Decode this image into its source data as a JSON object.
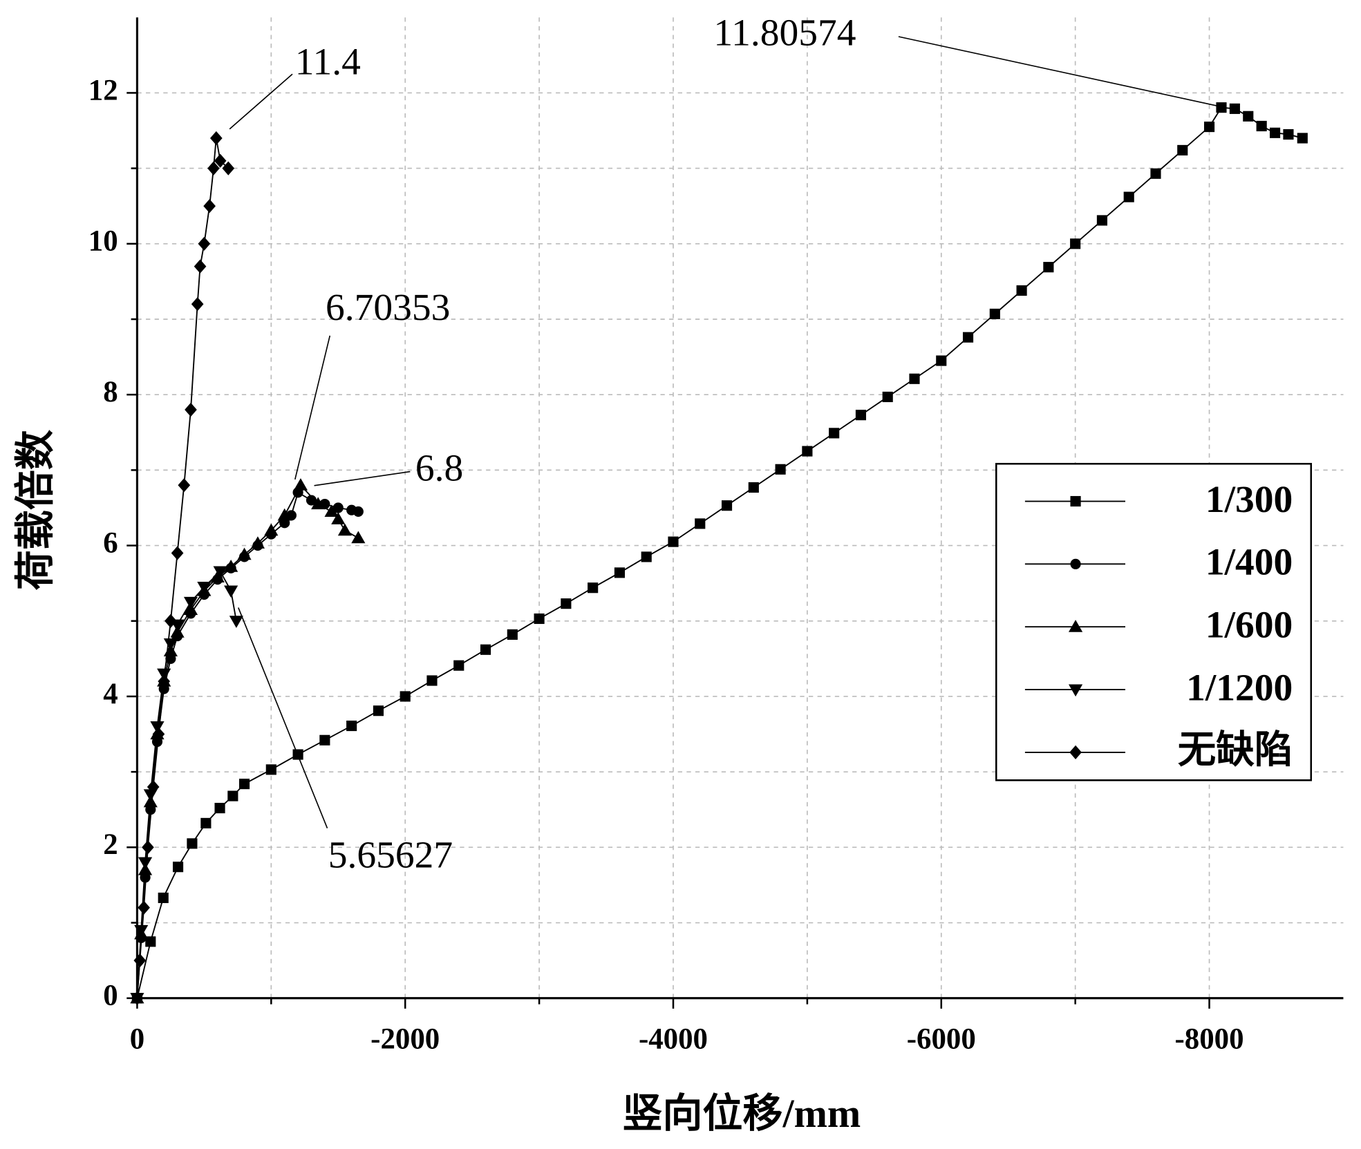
{
  "chart_data": {
    "type": "line",
    "xlabel": "竖向位移/mm",
    "ylabel": "荷载倍数",
    "xlim": [
      0,
      -9000
    ],
    "ylim": [
      0,
      13
    ],
    "xticks": [
      0,
      -2000,
      -4000,
      -6000,
      -8000
    ],
    "yticks": [
      0,
      2,
      4,
      6,
      8,
      10,
      12
    ],
    "grid": true,
    "legend": "right",
    "series": [
      {
        "name": "1/300",
        "marker": "square",
        "color": "#000000",
        "x": [
          0,
          -100,
          -195,
          -305,
          -410,
          -513,
          -617,
          -714,
          -800,
          -1000,
          -1200,
          -1400,
          -1600,
          -1800,
          -2000,
          -2200,
          -2400,
          -2600,
          -2800,
          -3000,
          -3200,
          -3400,
          -3600,
          -3800,
          -4000,
          -4200,
          -4400,
          -4600,
          -4800,
          -5000,
          -5200,
          -5400,
          -5600,
          -5800,
          -6000,
          -6200,
          -6400,
          -6600,
          -6800,
          -7000,
          -7200,
          -7400,
          -7600,
          -7800,
          -8000,
          -8090,
          -8190,
          -8290,
          -8390,
          -8490,
          -8590,
          -8695
        ],
        "values": [
          0,
          0.75,
          1.33,
          1.74,
          2.05,
          2.32,
          2.52,
          2.68,
          2.84,
          3.03,
          3.23,
          3.42,
          3.61,
          3.81,
          4.0,
          4.21,
          4.41,
          4.62,
          4.82,
          5.03,
          5.23,
          5.44,
          5.64,
          5.85,
          6.05,
          6.29,
          6.53,
          6.77,
          7.01,
          7.25,
          7.49,
          7.73,
          7.97,
          8.21,
          8.45,
          8.76,
          9.07,
          9.38,
          9.69,
          10.0,
          10.31,
          10.62,
          10.93,
          11.24,
          11.55,
          11.80574,
          11.79,
          11.69,
          11.56,
          11.47,
          11.45,
          11.4
        ]
      },
      {
        "name": "1/400",
        "marker": "circle",
        "color": "#000000",
        "x": [
          0,
          -30,
          -60,
          -100,
          -150,
          -200,
          -250,
          -300,
          -400,
          -500,
          -600,
          -700,
          -800,
          -900,
          -1000,
          -1100,
          -1150,
          -1200,
          -1300,
          -1400,
          -1500,
          -1600,
          -1650
        ],
        "values": [
          0,
          0.8,
          1.6,
          2.5,
          3.4,
          4.1,
          4.5,
          4.8,
          5.1,
          5.35,
          5.55,
          5.7,
          5.85,
          6.0,
          6.15,
          6.3,
          6.4,
          6.70353,
          6.6,
          6.55,
          6.5,
          6.47,
          6.45
        ]
      },
      {
        "name": "1/600",
        "marker": "triangle-up",
        "color": "#000000",
        "x": [
          0,
          -30,
          -60,
          -100,
          -150,
          -200,
          -250,
          -300,
          -400,
          -500,
          -600,
          -700,
          -800,
          -900,
          -1000,
          -1100,
          -1220,
          -1350,
          -1450,
          -1500,
          -1550,
          -1650
        ],
        "values": [
          0,
          0.85,
          1.7,
          2.6,
          3.5,
          4.2,
          4.6,
          4.85,
          5.15,
          5.4,
          5.58,
          5.72,
          5.88,
          6.03,
          6.2,
          6.4,
          6.8,
          6.55,
          6.45,
          6.35,
          6.2,
          6.1
        ]
      },
      {
        "name": "1/1200",
        "marker": "triangle-down",
        "color": "#000000",
        "x": [
          0,
          -30,
          -60,
          -100,
          -150,
          -200,
          -250,
          -300,
          -400,
          -500,
          -620,
          -700,
          -740
        ],
        "values": [
          0,
          0.9,
          1.8,
          2.7,
          3.6,
          4.3,
          4.7,
          4.95,
          5.25,
          5.45,
          5.65627,
          5.4,
          5.0
        ]
      },
      {
        "name": "无缺陷",
        "marker": "diamond",
        "color": "#000000",
        "x": [
          0,
          -20,
          -50,
          -80,
          -120,
          -160,
          -200,
          -250,
          -300,
          -350,
          -400,
          -450,
          -470,
          -500,
          -540,
          -570,
          -590,
          -620,
          -680
        ],
        "values": [
          0,
          0.5,
          1.2,
          2.0,
          2.8,
          3.5,
          4.2,
          5.0,
          5.9,
          6.8,
          7.8,
          9.2,
          9.7,
          10.0,
          10.5,
          11.0,
          11.4,
          11.1,
          11.0
        ]
      }
    ],
    "annotations": [
      "11.4",
      "11.80574",
      "6.70353",
      "6.8",
      "5.65627"
    ]
  }
}
